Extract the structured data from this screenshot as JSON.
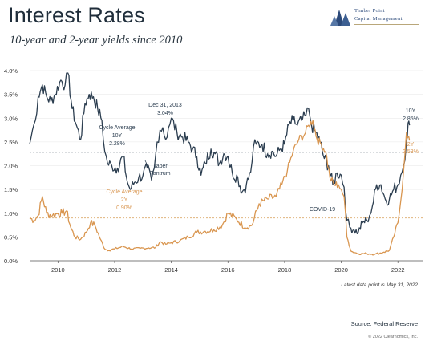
{
  "header": {
    "title": "Interest Rates",
    "subtitle": "10-year and 2-year yields since 2010",
    "logo_line1": "Timber Point",
    "logo_line2": "Capital Management"
  },
  "footer": {
    "note": "Latest data point is May 31, 2022",
    "source": "Source: Federal Reserve",
    "copyright": "© 2022 Clearnomics, Inc."
  },
  "colors": {
    "ten_year": "#2c3e50",
    "two_year": "#d99650",
    "avg_ten": "#9aa4ab",
    "avg_two": "#e0b47d"
  },
  "chart_data": {
    "type": "line",
    "xlim": [
      2009.0,
      2022.9
    ],
    "ylim": [
      0.0,
      4.0
    ],
    "x_ticks": [
      2010,
      2012,
      2014,
      2016,
      2018,
      2020,
      2022
    ],
    "x_tick_labels": [
      "2010",
      "2012",
      "2014",
      "2016",
      "2018",
      "2020",
      "2022"
    ],
    "y_ticks": [
      0,
      0.5,
      1.0,
      1.5,
      2.0,
      2.5,
      3.0,
      3.5,
      4.0
    ],
    "y_tick_labels": [
      "0.0%",
      "0.5%",
      "1.0%",
      "1.5%",
      "2.0%",
      "2.5%",
      "3.0%",
      "3.5%",
      "4.0%"
    ],
    "series": [
      {
        "name": "10Y",
        "x": [
          2009.0,
          2009.1,
          2009.2,
          2009.3,
          2009.45,
          2009.6,
          2009.75,
          2009.9,
          2010.1,
          2010.25,
          2010.35,
          2010.5,
          2010.65,
          2010.8,
          2010.95,
          2011.1,
          2011.25,
          2011.4,
          2011.55,
          2011.65,
          2011.75,
          2011.9,
          2012.1,
          2012.3,
          2012.45,
          2012.55,
          2012.7,
          2012.85,
          2013.0,
          2013.15,
          2013.3,
          2013.4,
          2013.5,
          2013.6,
          2013.7,
          2013.8,
          2013.9,
          2014.0,
          2014.2,
          2014.4,
          2014.6,
          2014.75,
          2014.9,
          2015.05,
          2015.2,
          2015.4,
          2015.55,
          2015.7,
          2015.85,
          2016.0,
          2016.15,
          2016.35,
          2016.5,
          2016.65,
          2016.8,
          2016.9,
          2017.0,
          2017.2,
          2017.4,
          2017.55,
          2017.7,
          2017.85,
          2018.0,
          2018.15,
          2018.3,
          2018.45,
          2018.6,
          2018.75,
          2018.85,
          2018.95,
          2019.1,
          2019.25,
          2019.4,
          2019.55,
          2019.7,
          2019.85,
          2020.0,
          2020.1,
          2020.2,
          2020.3,
          2020.45,
          2020.6,
          2020.75,
          2020.9,
          2021.0,
          2021.1,
          2021.25,
          2021.4,
          2021.55,
          2021.7,
          2021.85,
          2022.0,
          2022.1,
          2022.2,
          2022.3,
          2022.36,
          2022.41
        ],
        "values": [
          2.45,
          2.75,
          2.95,
          3.45,
          3.7,
          3.45,
          3.35,
          3.5,
          3.8,
          3.7,
          3.95,
          3.2,
          2.85,
          2.55,
          3.3,
          3.5,
          3.45,
          3.2,
          2.95,
          2.3,
          2.05,
          2.0,
          1.95,
          2.2,
          1.65,
          1.5,
          1.65,
          1.75,
          1.8,
          1.95,
          1.7,
          1.95,
          2.5,
          2.75,
          2.8,
          2.55,
          2.8,
          3.0,
          2.7,
          2.6,
          2.5,
          2.35,
          2.2,
          1.8,
          2.05,
          2.35,
          2.25,
          2.05,
          2.25,
          2.2,
          1.85,
          1.75,
          1.45,
          1.6,
          1.85,
          2.4,
          2.45,
          2.45,
          2.25,
          2.3,
          2.2,
          2.35,
          2.45,
          2.85,
          2.95,
          2.85,
          2.95,
          3.05,
          3.2,
          2.85,
          2.7,
          2.5,
          2.15,
          2.0,
          1.6,
          1.85,
          1.8,
          1.55,
          0.85,
          0.7,
          0.65,
          0.6,
          0.8,
          0.85,
          0.95,
          1.15,
          1.6,
          1.6,
          1.3,
          1.3,
          1.5,
          1.6,
          1.8,
          2.0,
          2.5,
          2.9,
          2.85
        ]
      },
      {
        "name": "2Y",
        "x": [
          2009.0,
          2009.15,
          2009.3,
          2009.45,
          2009.6,
          2009.8,
          2010.0,
          2010.15,
          2010.3,
          2010.45,
          2010.6,
          2010.8,
          2011.0,
          2011.15,
          2011.3,
          2011.5,
          2011.65,
          2011.8,
          2012.0,
          2012.3,
          2012.6,
          2012.9,
          2013.2,
          2013.45,
          2013.6,
          2013.8,
          2014.0,
          2014.3,
          2014.6,
          2014.9,
          2015.2,
          2015.5,
          2015.8,
          2016.0,
          2016.3,
          2016.6,
          2016.85,
          2017.1,
          2017.4,
          2017.7,
          2017.9,
          2018.1,
          2018.3,
          2018.5,
          2018.7,
          2018.85,
          2019.0,
          2019.15,
          2019.3,
          2019.45,
          2019.6,
          2019.75,
          2019.9,
          2020.0,
          2020.1,
          2020.2,
          2020.35,
          2020.6,
          2020.9,
          2021.2,
          2021.5,
          2021.7,
          2021.85,
          2022.0,
          2022.1,
          2022.2,
          2022.3,
          2022.36,
          2022.41
        ],
        "values": [
          0.9,
          0.85,
          0.95,
          1.35,
          1.0,
          0.95,
          1.0,
          1.0,
          1.05,
          0.7,
          0.5,
          0.45,
          0.6,
          0.8,
          0.75,
          0.45,
          0.25,
          0.22,
          0.25,
          0.3,
          0.25,
          0.26,
          0.27,
          0.28,
          0.4,
          0.35,
          0.38,
          0.42,
          0.5,
          0.6,
          0.62,
          0.65,
          0.75,
          1.0,
          0.88,
          0.7,
          0.75,
          1.2,
          1.3,
          1.35,
          1.6,
          1.9,
          2.3,
          2.55,
          2.65,
          2.85,
          2.95,
          2.55,
          2.45,
          2.3,
          1.75,
          1.6,
          1.6,
          1.5,
          1.35,
          0.5,
          0.2,
          0.15,
          0.15,
          0.14,
          0.18,
          0.22,
          0.5,
          0.8,
          1.25,
          1.9,
          2.7,
          2.6,
          2.53
        ]
      }
    ],
    "reference_lines": [
      {
        "name": "Cycle Average 10Y",
        "value": 2.28
      },
      {
        "name": "Cycle Average 2Y",
        "value": 0.9
      }
    ],
    "annotations": {
      "avg10_l1": "Cycle Average",
      "avg10_l2": "10Y",
      "avg10_l3": "2.28%",
      "avg2_l1": "Cycle Average",
      "avg2_l2": "2Y",
      "avg2_l3": "0.90%",
      "dec_l1": "Dec 31, 2013",
      "dec_l2": "3.04%",
      "taper_l1": "Taper",
      "taper_l2": "Tantrum",
      "covid": "COVID-19",
      "end10_l1": "10Y",
      "end10_l2": "2.85%",
      "end2_l1": "2Y",
      "end2_l2": "2.53%"
    }
  }
}
